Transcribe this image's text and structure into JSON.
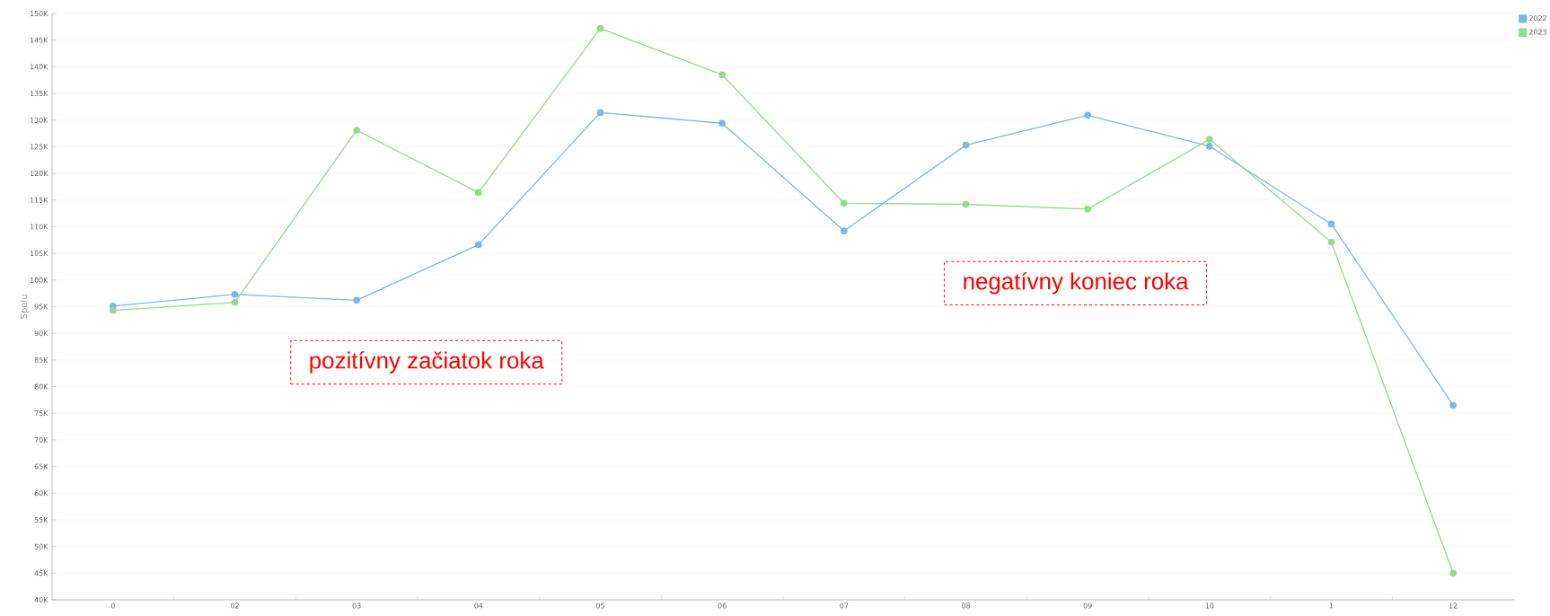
{
  "chart_data": {
    "type": "line",
    "ylabel": "Spolu",
    "categories": [
      "0",
      "02",
      "03",
      "04",
      "05",
      "06",
      "07",
      "08",
      "09",
      "10",
      "1",
      "12"
    ],
    "series": [
      {
        "name": "2022",
        "color": "#7eb6e6",
        "values": [
          95100,
          97300,
          96200,
          106600,
          131400,
          129400,
          109200,
          125300,
          130900,
          125100,
          110500,
          76500
        ]
      },
      {
        "name": "2023",
        "color": "#95d98e",
        "values": [
          94300,
          95800,
          128100,
          116400,
          147200,
          138500,
          114400,
          114200,
          113300,
          126400,
          107100,
          45000
        ]
      }
    ],
    "ylim": [
      40000,
      150000
    ],
    "yticks": [
      {
        "value": 40000,
        "label": "40K"
      },
      {
        "value": 45000,
        "label": "45K"
      },
      {
        "value": 50000,
        "label": "50K"
      },
      {
        "value": 55000,
        "label": "55K"
      },
      {
        "value": 60000,
        "label": "60K"
      },
      {
        "value": 65000,
        "label": "65K"
      },
      {
        "value": 70000,
        "label": "70K"
      },
      {
        "value": 75000,
        "label": "75K"
      },
      {
        "value": 80000,
        "label": "80K"
      },
      {
        "value": 85000,
        "label": "85K"
      },
      {
        "value": 90000,
        "label": "90K"
      },
      {
        "value": 95000,
        "label": "95K"
      },
      {
        "value": 100000,
        "label": "100K"
      },
      {
        "value": 105000,
        "label": "105K"
      },
      {
        "value": 110000,
        "label": "110K"
      },
      {
        "value": 115000,
        "label": "115K"
      },
      {
        "value": 120000,
        "label": "120K"
      },
      {
        "value": 125000,
        "label": "125K"
      },
      {
        "value": 130000,
        "label": "130K"
      },
      {
        "value": 135000,
        "label": "135K"
      },
      {
        "value": 140000,
        "label": "140K"
      },
      {
        "value": 145000,
        "label": "145K"
      },
      {
        "value": 150000,
        "label": "150K"
      }
    ],
    "annotations": [
      "pozitívny  začiatok roka",
      "negatívny  koniec roka"
    ],
    "grid": "y",
    "legend": "top right",
    "marker": "circle",
    "line_style": "solid"
  }
}
